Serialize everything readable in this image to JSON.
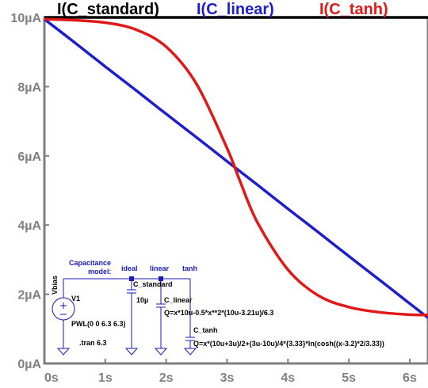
{
  "chart_data": {
    "type": "line",
    "title": "",
    "xlabel": "",
    "ylabel": "",
    "xlim": [
      0,
      6.3
    ],
    "ylim": [
      0,
      10
    ],
    "x_ticks": [
      "0s",
      "1s",
      "2s",
      "3s",
      "4s",
      "5s",
      "6s"
    ],
    "y_ticks": [
      "0µA",
      "2µA",
      "4µA",
      "6µA",
      "8µA",
      "10µA"
    ],
    "grid": false,
    "legend_position": "top",
    "x": [
      0.0,
      0.5,
      1.0,
      1.5,
      2.0,
      2.5,
      3.0,
      3.2,
      3.5,
      4.0,
      4.5,
      5.0,
      5.5,
      6.0,
      6.3
    ],
    "series": [
      {
        "name": "I(C_standard)",
        "color": "#000000",
        "values": [
          10,
          10,
          10,
          10,
          10,
          10,
          10,
          10,
          10,
          10,
          10,
          10,
          10,
          10,
          10
        ]
      },
      {
        "name": "I(C_linear)",
        "color": "#1e1ecc",
        "values": [
          9.95,
          9.27,
          8.58,
          7.9,
          7.21,
          6.53,
          5.84,
          5.57,
          5.16,
          4.47,
          3.79,
          3.1,
          2.42,
          1.73,
          1.32
        ]
      },
      {
        "name": "I(C_tanh)",
        "color": "#e01818",
        "values": [
          9.95,
          9.92,
          9.85,
          9.65,
          9.15,
          8.07,
          6.22,
          5.33,
          4.07,
          2.71,
          1.96,
          1.63,
          1.48,
          1.41,
          1.4
        ]
      }
    ]
  },
  "schematic": {
    "cap_model_line1": "Capacitance",
    "cap_model_line2": "model:",
    "node_ideal": "ideal",
    "node_linear": "linear",
    "node_tanh": "tanh",
    "source_name": "V1",
    "source_net": "Vbias",
    "source_value": "PWL(0 0 6.3 6.3)",
    "tran_cmd": ".tran 6.3",
    "cap_standard_name": "C_standard",
    "cap_standard_value": "10µ",
    "cap_linear_name": "C_linear",
    "cap_linear_expr": "Q=x*10u-0.5*x**2*(10u-3.21u)/6.3",
    "cap_tanh_name": "C_tanh",
    "cap_tanh_expr": "Q=x*(10u+3u)/2+(3u-10u)/4*{3.33}*ln(cosh((x-3.2)*2/3.33))"
  }
}
